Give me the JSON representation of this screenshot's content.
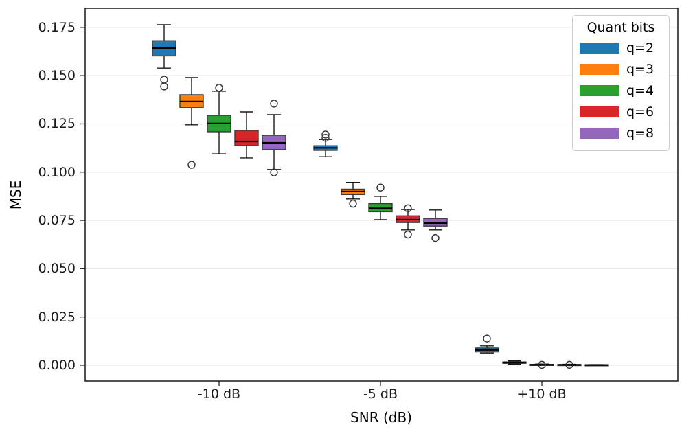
{
  "legend": {
    "title": "Quant bits"
  },
  "chart_data": {
    "type": "boxplot",
    "title": "",
    "xlabel": "SNR (dB)",
    "ylabel": "MSE",
    "categories": [
      "-10 dB",
      "-5 dB",
      "+10 dB"
    ],
    "ylim": [
      -0.0082,
      0.1849
    ],
    "yticks": [
      0.0,
      0.025,
      0.05,
      0.075,
      0.1,
      0.125,
      0.15,
      0.175
    ],
    "ytick_labels": [
      "0.000",
      "0.025",
      "0.050",
      "0.075",
      "0.100",
      "0.125",
      "0.150",
      "0.175"
    ],
    "grid": "horizontal",
    "legend_position": "upper right",
    "legend_title": "Quant bits",
    "style": {
      "grid_color": "#e8e8e8",
      "spine_color": "#262626",
      "box_edge_color": "#3a3a3a",
      "median_color": "#000000",
      "whisker_color": "#1a1a1a",
      "flier_edge_color": "#333333",
      "background": "#ffffff"
    },
    "series": [
      {
        "name": "q=2",
        "color": "#1f77b4",
        "boxes": [
          {
            "whislo": 0.1539,
            "q1": 0.1602,
            "med": 0.1643,
            "q3": 0.1681,
            "whishi": 0.1764,
            "fliers": [
              0.1479,
              0.1444
            ]
          },
          {
            "whislo": 0.108,
            "q1": 0.1113,
            "med": 0.1126,
            "q3": 0.1137,
            "whishi": 0.1169,
            "fliers": [
              0.1178,
              0.1195
            ]
          },
          {
            "whislo": 0.0063,
            "q1": 0.0069,
            "med": 0.0079,
            "q3": 0.0089,
            "whishi": 0.01,
            "fliers": [
              0.0138
            ]
          }
        ]
      },
      {
        "name": "q=3",
        "color": "#ff7f0e",
        "boxes": [
          {
            "whislo": 0.1245,
            "q1": 0.1334,
            "med": 0.1366,
            "q3": 0.1401,
            "whishi": 0.149,
            "fliers": [
              0.1038
            ]
          },
          {
            "whislo": 0.0861,
            "q1": 0.0884,
            "med": 0.09,
            "q3": 0.0912,
            "whishi": 0.0947,
            "fliers": [
              0.0837
            ]
          },
          {
            "whislo": 0.0006,
            "q1": 0.001,
            "med": 0.0013,
            "q3": 0.0017,
            "whishi": 0.0022,
            "fliers": []
          }
        ]
      },
      {
        "name": "q=4",
        "color": "#2ca02c",
        "boxes": [
          {
            "whislo": 0.1095,
            "q1": 0.1209,
            "med": 0.1252,
            "q3": 0.1294,
            "whishi": 0.1419,
            "fliers": [
              0.1437
            ]
          },
          {
            "whislo": 0.0754,
            "q1": 0.0795,
            "med": 0.0813,
            "q3": 0.0837,
            "whishi": 0.0875,
            "fliers": [
              0.092
            ]
          },
          {
            "whislo": 0.0,
            "q1": 0.0001,
            "med": 0.0002,
            "q3": 0.0004,
            "whishi": 0.0006,
            "fliers": [
              0.0002
            ]
          }
        ]
      },
      {
        "name": "q=6",
        "color": "#d62728",
        "boxes": [
          {
            "whislo": 0.1074,
            "q1": 0.1138,
            "med": 0.1159,
            "q3": 0.1216,
            "whishi": 0.1312,
            "fliers": []
          },
          {
            "whislo": 0.0701,
            "q1": 0.0739,
            "med": 0.0754,
            "q3": 0.0774,
            "whishi": 0.0807,
            "fliers": [
              0.0813,
              0.0677
            ]
          },
          {
            "whislo": 0.0,
            "q1": 0.0001,
            "med": 0.0002,
            "q3": 0.0003,
            "whishi": 0.0005,
            "fliers": [
              0.0002
            ]
          }
        ]
      },
      {
        "name": "q=8",
        "color": "#9467bd",
        "boxes": [
          {
            "whislo": 0.1014,
            "q1": 0.1117,
            "med": 0.1152,
            "q3": 0.1191,
            "whishi": 0.1298,
            "fliers": [
              0.1355,
              0.0999
            ]
          },
          {
            "whislo": 0.0701,
            "q1": 0.0721,
            "med": 0.0736,
            "q3": 0.076,
            "whishi": 0.0804,
            "fliers": [
              0.0659
            ]
          },
          {
            "whislo": 0.0,
            "q1": 0.0,
            "med": 0.0001,
            "q3": 0.0002,
            "whishi": 0.0003,
            "fliers": []
          }
        ]
      }
    ]
  }
}
